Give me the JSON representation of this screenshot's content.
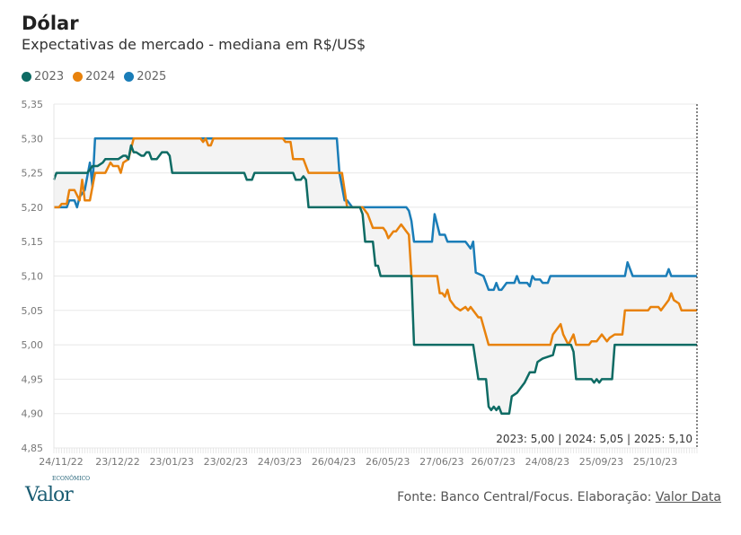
{
  "header": {
    "title": "Dólar",
    "subtitle": "Expectativas de mercado - mediana em R$/US$"
  },
  "footer": {
    "logo": "Valor",
    "logo_sup": "ECONÔMICO",
    "source_prefix": "Fonte: Banco Central/Focus. Elaboração: ",
    "source_link": "Valor Data"
  },
  "chart_data": {
    "type": "line",
    "title": "Dólar",
    "subtitle": "Expectativas de mercado - mediana em R$/US$",
    "xlabel": "",
    "ylabel": "",
    "x_unit": "observation index (business days since 24/11/22)",
    "xlim": [
      0,
      250
    ],
    "ylim": [
      4.85,
      5.35
    ],
    "yticks": [
      4.85,
      4.9,
      4.95,
      5.0,
      5.05,
      5.1,
      5.15,
      5.2,
      5.25,
      5.3,
      5.35
    ],
    "ytick_labels": [
      "4,85",
      "4,90",
      "4,95",
      "5,00",
      "5,05",
      "5,10",
      "5,15",
      "5,20",
      "5,25",
      "5,30",
      "5,35"
    ],
    "xticks": [
      0,
      22,
      43,
      64,
      85,
      106,
      127,
      148,
      168,
      189,
      210,
      231
    ],
    "xtick_labels": [
      "24/11/22",
      "23/12/22",
      "23/01/23",
      "23/02/23",
      "24/03/23",
      "26/04/23",
      "26/05/23",
      "27/06/23",
      "26/07/23",
      "24/08/23",
      "25/09/23",
      "25/10/23"
    ],
    "grid": true,
    "legend_position": "top-left",
    "annotation": "2023: 5,00 | 2024: 5,05 | 2025: 5,10",
    "range_fill": "#f3f3f3",
    "series": [
      {
        "name": "2023",
        "color": "#0e6b64",
        "points": [
          [
            0,
            5.24
          ],
          [
            1,
            5.25
          ],
          [
            13,
            5.25
          ],
          [
            15,
            5.26
          ],
          [
            17,
            5.26
          ],
          [
            19,
            5.265
          ],
          [
            20,
            5.27
          ],
          [
            25,
            5.27
          ],
          [
            27,
            5.275
          ],
          [
            28,
            5.275
          ],
          [
            29,
            5.27
          ],
          [
            30,
            5.29
          ],
          [
            31,
            5.28
          ],
          [
            32,
            5.28
          ],
          [
            34,
            5.275
          ],
          [
            35,
            5.275
          ],
          [
            36,
            5.28
          ],
          [
            37,
            5.28
          ],
          [
            38,
            5.27
          ],
          [
            40,
            5.27
          ],
          [
            42,
            5.28
          ],
          [
            44,
            5.28
          ],
          [
            45,
            5.275
          ],
          [
            46,
            5.25
          ],
          [
            74,
            5.25
          ],
          [
            75,
            5.24
          ],
          [
            77,
            5.24
          ],
          [
            78,
            5.25
          ],
          [
            93,
            5.25
          ],
          [
            94,
            5.24
          ],
          [
            96,
            5.24
          ],
          [
            97,
            5.245
          ],
          [
            98,
            5.24
          ],
          [
            99,
            5.2
          ],
          [
            119,
            5.2
          ],
          [
            120,
            5.19
          ],
          [
            121,
            5.15
          ],
          [
            124,
            5.15
          ],
          [
            125,
            5.115
          ],
          [
            126,
            5.115
          ],
          [
            127,
            5.1
          ],
          [
            139,
            5.1
          ],
          [
            140,
            5.0
          ],
          [
            163,
            5.0
          ],
          [
            165,
            4.95
          ],
          [
            168,
            4.95
          ],
          [
            169,
            4.91
          ],
          [
            170,
            4.905
          ],
          [
            171,
            4.91
          ],
          [
            172,
            4.905
          ],
          [
            173,
            4.91
          ],
          [
            174,
            4.9
          ],
          [
            177,
            4.9
          ],
          [
            178,
            4.925
          ],
          [
            180,
            4.93
          ],
          [
            181,
            4.935
          ],
          [
            183,
            4.945
          ],
          [
            185,
            4.96
          ],
          [
            187,
            4.96
          ],
          [
            188,
            4.975
          ],
          [
            190,
            4.98
          ],
          [
            194,
            4.985
          ],
          [
            195,
            5.0
          ],
          [
            201,
            5.0
          ],
          [
            202,
            4.99
          ],
          [
            203,
            4.95
          ],
          [
            209,
            4.95
          ],
          [
            210,
            4.945
          ],
          [
            211,
            4.95
          ],
          [
            212,
            4.945
          ],
          [
            213,
            4.95
          ],
          [
            217,
            4.95
          ],
          [
            218,
            5.0
          ],
          [
            250,
            5.0
          ]
        ]
      },
      {
        "name": "2024",
        "color": "#e8820c",
        "points": [
          [
            0,
            5.2
          ],
          [
            2,
            5.2
          ],
          [
            3,
            5.205
          ],
          [
            5,
            5.205
          ],
          [
            6,
            5.225
          ],
          [
            8,
            5.225
          ],
          [
            10,
            5.21
          ],
          [
            11,
            5.24
          ],
          [
            12,
            5.21
          ],
          [
            14,
            5.21
          ],
          [
            15,
            5.23
          ],
          [
            16,
            5.25
          ],
          [
            20,
            5.25
          ],
          [
            22,
            5.265
          ],
          [
            23,
            5.26
          ],
          [
            25,
            5.26
          ],
          [
            26,
            5.25
          ],
          [
            27,
            5.265
          ],
          [
            29,
            5.27
          ],
          [
            31,
            5.3
          ],
          [
            57,
            5.3
          ],
          [
            58,
            5.295
          ],
          [
            59,
            5.3
          ],
          [
            60,
            5.29
          ],
          [
            61,
            5.29
          ],
          [
            62,
            5.3
          ],
          [
            89,
            5.3
          ],
          [
            90,
            5.295
          ],
          [
            92,
            5.295
          ],
          [
            93,
            5.27
          ],
          [
            97,
            5.27
          ],
          [
            99,
            5.25
          ],
          [
            112,
            5.25
          ],
          [
            114,
            5.2
          ],
          [
            120,
            5.2
          ],
          [
            122,
            5.19
          ],
          [
            124,
            5.17
          ],
          [
            128,
            5.17
          ],
          [
            129,
            5.165
          ],
          [
            130,
            5.155
          ],
          [
            132,
            5.165
          ],
          [
            133,
            5.165
          ],
          [
            134,
            5.17
          ],
          [
            135,
            5.175
          ],
          [
            137,
            5.165
          ],
          [
            138,
            5.16
          ],
          [
            139,
            5.1
          ],
          [
            149,
            5.1
          ],
          [
            150,
            5.075
          ],
          [
            151,
            5.075
          ],
          [
            152,
            5.07
          ],
          [
            153,
            5.08
          ],
          [
            154,
            5.065
          ],
          [
            155,
            5.06
          ],
          [
            156,
            5.055
          ],
          [
            158,
            5.05
          ],
          [
            160,
            5.055
          ],
          [
            161,
            5.05
          ],
          [
            162,
            5.055
          ],
          [
            164,
            5.045
          ],
          [
            165,
            5.04
          ],
          [
            166,
            5.04
          ],
          [
            169,
            5.0
          ],
          [
            193,
            5.0
          ],
          [
            194,
            5.015
          ],
          [
            195,
            5.02
          ],
          [
            197,
            5.03
          ],
          [
            198,
            5.015
          ],
          [
            200,
            5.0
          ],
          [
            202,
            5.015
          ],
          [
            203,
            5.0
          ],
          [
            208,
            5.0
          ],
          [
            209,
            5.005
          ],
          [
            211,
            5.005
          ],
          [
            213,
            5.015
          ],
          [
            215,
            5.005
          ],
          [
            216,
            5.01
          ],
          [
            218,
            5.015
          ],
          [
            221,
            5.015
          ],
          [
            222,
            5.05
          ],
          [
            231,
            5.05
          ],
          [
            232,
            5.055
          ],
          [
            235,
            5.055
          ],
          [
            236,
            5.05
          ],
          [
            238,
            5.06
          ],
          [
            239,
            5.065
          ],
          [
            240,
            5.075
          ],
          [
            241,
            5.065
          ],
          [
            243,
            5.06
          ],
          [
            244,
            5.05
          ],
          [
            250,
            5.05
          ]
        ]
      },
      {
        "name": "2025",
        "color": "#1a7db8",
        "points": [
          [
            0,
            5.2
          ],
          [
            5,
            5.2
          ],
          [
            6,
            5.21
          ],
          [
            8,
            5.21
          ],
          [
            9,
            5.2
          ],
          [
            10,
            5.215
          ],
          [
            12,
            5.225
          ],
          [
            14,
            5.265
          ],
          [
            15,
            5.23
          ],
          [
            16,
            5.3
          ],
          [
            110,
            5.3
          ],
          [
            111,
            5.25
          ],
          [
            113,
            5.21
          ],
          [
            114,
            5.21
          ],
          [
            116,
            5.2
          ],
          [
            137,
            5.2
          ],
          [
            138,
            5.195
          ],
          [
            139,
            5.18
          ],
          [
            140,
            5.15
          ],
          [
            147,
            5.15
          ],
          [
            148,
            5.19
          ],
          [
            150,
            5.16
          ],
          [
            152,
            5.16
          ],
          [
            153,
            5.15
          ],
          [
            160,
            5.15
          ],
          [
            161,
            5.145
          ],
          [
            162,
            5.14
          ],
          [
            163,
            5.15
          ],
          [
            164,
            5.105
          ],
          [
            167,
            5.1
          ],
          [
            169,
            5.08
          ],
          [
            171,
            5.08
          ],
          [
            172,
            5.09
          ],
          [
            173,
            5.08
          ],
          [
            174,
            5.08
          ],
          [
            176,
            5.09
          ],
          [
            179,
            5.09
          ],
          [
            180,
            5.1
          ],
          [
            181,
            5.09
          ],
          [
            184,
            5.09
          ],
          [
            185,
            5.085
          ],
          [
            186,
            5.1
          ],
          [
            187,
            5.095
          ],
          [
            189,
            5.095
          ],
          [
            190,
            5.09
          ],
          [
            192,
            5.09
          ],
          [
            193,
            5.1
          ],
          [
            222,
            5.1
          ],
          [
            223,
            5.12
          ],
          [
            225,
            5.1
          ],
          [
            238,
            5.1
          ],
          [
            239,
            5.11
          ],
          [
            240,
            5.1
          ],
          [
            250,
            5.1
          ]
        ]
      }
    ]
  }
}
